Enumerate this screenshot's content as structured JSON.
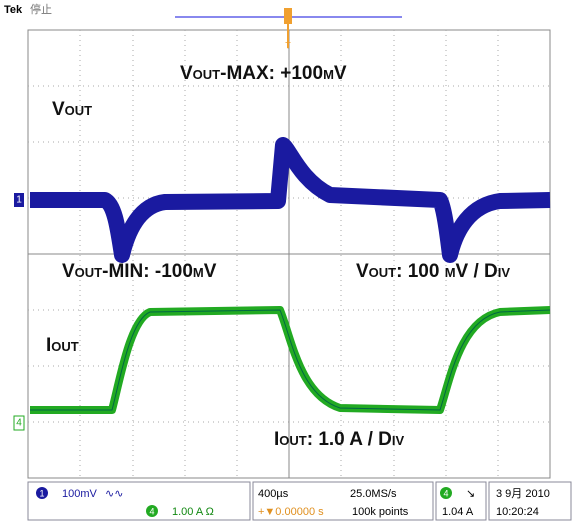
{
  "header": {
    "brand": "Tek",
    "state": "停止"
  },
  "annotations": {
    "vout": "Vout",
    "vout_max": "Vout-MAX: +100mV",
    "vout_min": "Vout-MIN: -100mV",
    "vout_scale": "Vout: 100 mV / Div",
    "iout": "Iout",
    "iout_scale": "Iout: 1.0 A / Div"
  },
  "channel_markers": {
    "ch1": "1",
    "ch4": "4",
    "trigger": "T"
  },
  "status": {
    "ch1_number": "1",
    "ch1_scale": "100mV",
    "ch1_bw": "∿∿",
    "ch4_number": "4",
    "ch4_scale": "1.00 A Ω",
    "timebase": "400µs",
    "sample_rate": "25.0MS/s",
    "trigger_position": "+▼0.00000 s",
    "record_length": "100k points",
    "trigger_source": "4",
    "trigger_slope": "↘",
    "trigger_level": "1.04 A",
    "date": "3 9月  2010",
    "time": "10:20:24"
  }
}
